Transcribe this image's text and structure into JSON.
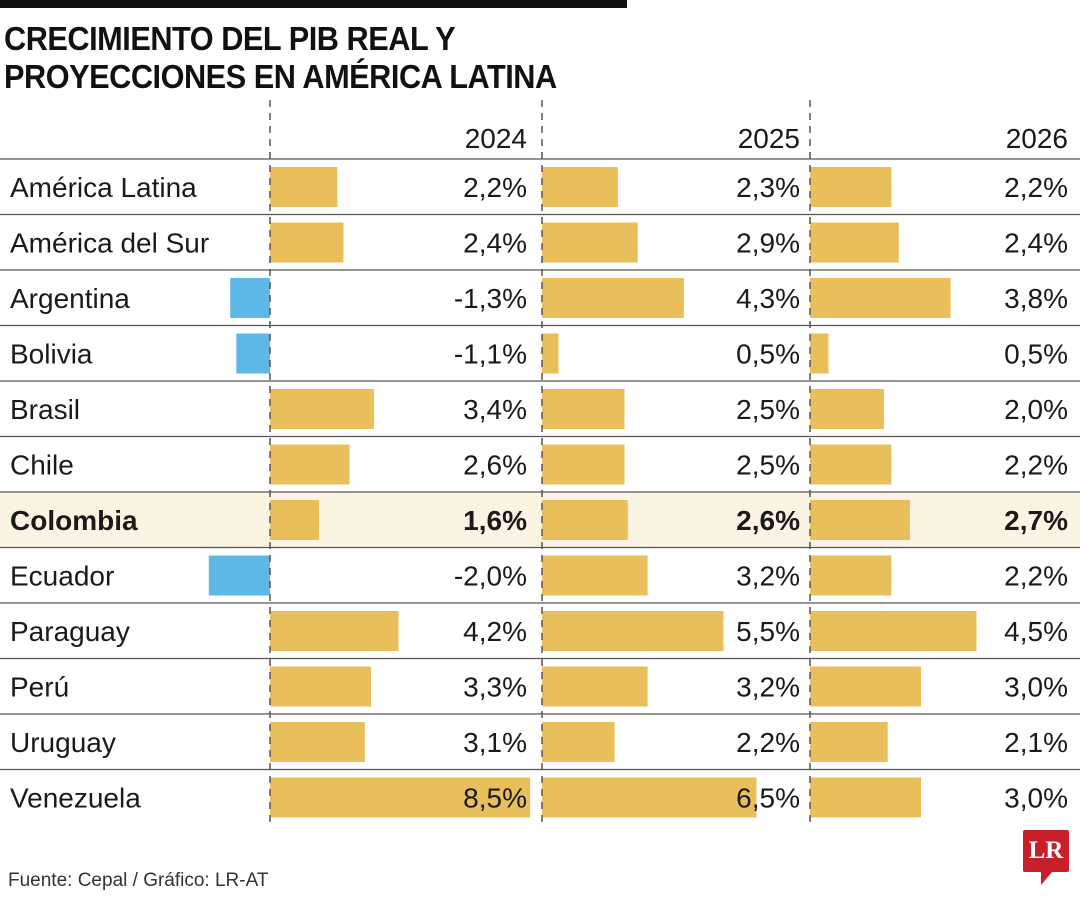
{
  "chart_data": {
    "type": "bar",
    "title": "CRECIMIENTO DEL PIB REAL Y PROYECCIONES EN AMÉRICA LATINA",
    "categories": [
      "América Latina",
      "América del Sur",
      "Argentina",
      "Bolivia",
      "Brasil",
      "Chile",
      "Colombia",
      "Ecuador",
      "Paraguay",
      "Perú",
      "Uruguay",
      "Venezuela"
    ],
    "highlight": "Colombia",
    "series": [
      {
        "name": "2024",
        "values": [
          2.2,
          2.4,
          -1.3,
          -1.1,
          3.4,
          2.6,
          1.6,
          -2.0,
          4.2,
          3.3,
          3.1,
          8.5
        ],
        "labels": [
          "2,2%",
          "2,4%",
          "-1,3%",
          "-1,1%",
          "3,4%",
          "2,6%",
          "1,6%",
          "-2,0%",
          "4,2%",
          "3,3%",
          "3,1%",
          "8,5%"
        ]
      },
      {
        "name": "2025",
        "values": [
          2.3,
          2.9,
          4.3,
          0.5,
          2.5,
          2.5,
          2.6,
          3.2,
          5.5,
          3.2,
          2.2,
          6.5
        ],
        "labels": [
          "2,3%",
          "2,9%",
          "4,3%",
          "0,5%",
          "2,5%",
          "2,5%",
          "2,6%",
          "3,2%",
          "5,5%",
          "3,2%",
          "2,2%",
          "6,5%"
        ]
      },
      {
        "name": "2026",
        "values": [
          2.2,
          2.4,
          3.8,
          0.5,
          2.0,
          2.2,
          2.7,
          2.2,
          4.5,
          3.0,
          2.1,
          3.0
        ],
        "labels": [
          "2,2%",
          "2,4%",
          "3,8%",
          "0,5%",
          "2,0%",
          "2,2%",
          "2,7%",
          "2,2%",
          "4,5%",
          "3,0%",
          "2,1%",
          "3,0%"
        ]
      }
    ],
    "colors": {
      "positive": "#e8bf5a",
      "negative": "#5db8e6",
      "highlight_bg": "#fbf4e3"
    }
  },
  "source": "Fuente: Cepal / Gráfico: LR-AT",
  "logo": "LR"
}
